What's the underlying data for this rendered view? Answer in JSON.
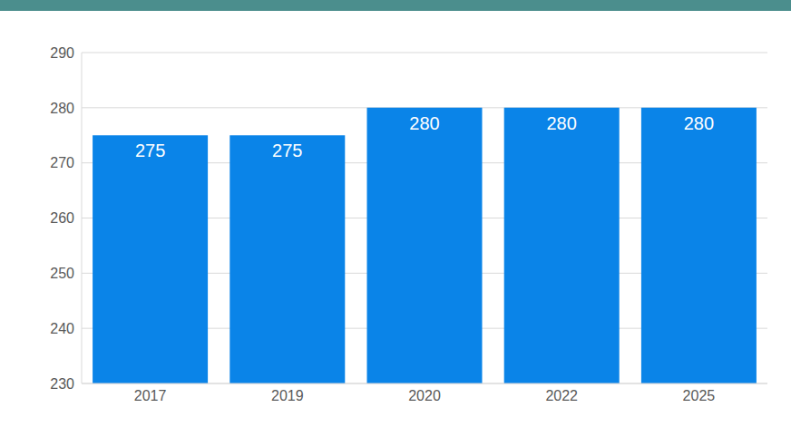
{
  "chart_data": {
    "type": "bar",
    "categories": [
      "2017",
      "2019",
      "2020",
      "2022",
      "2025"
    ],
    "values": [
      275,
      275,
      280,
      280,
      280
    ],
    "color": "#0a84e8",
    "ylim": [
      230,
      290
    ],
    "yticks": [
      230,
      240,
      250,
      260,
      270,
      280,
      290
    ],
    "grid": true,
    "data_labels": true
  }
}
